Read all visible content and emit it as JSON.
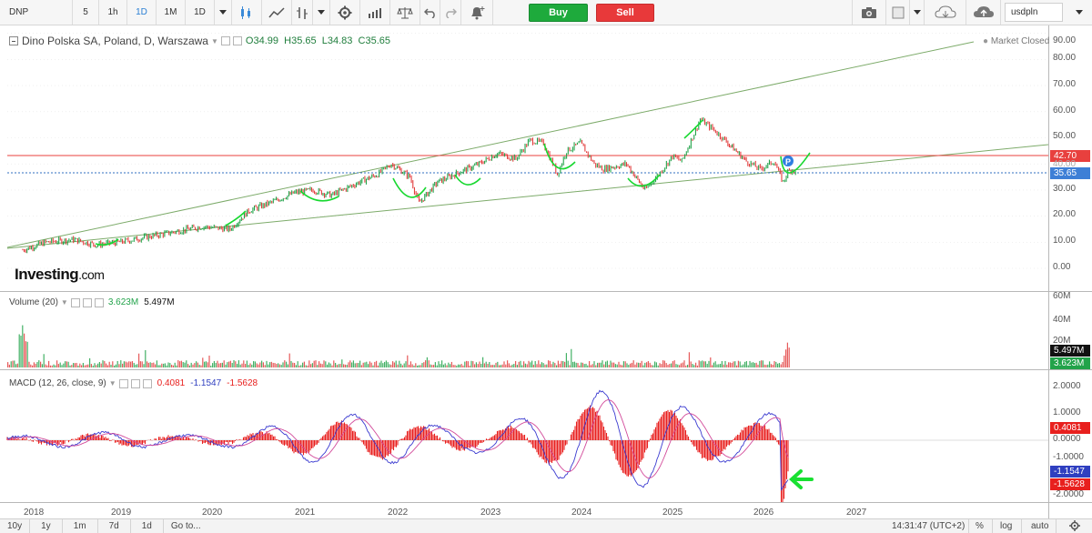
{
  "toolbar": {
    "symbol": "DNP",
    "intervals": [
      "5",
      "1h",
      "1D",
      "1M",
      "1D"
    ],
    "active_interval": "1D",
    "buy_label": "Buy",
    "sell_label": "Sell",
    "currency": "usdpln"
  },
  "main_pane": {
    "title": "Dino Polska SA, Poland, D, Warszawa",
    "ohlc": {
      "o_label": "O",
      "o": "34.99",
      "h_label": "H",
      "h": "35.65",
      "l_label": "L",
      "l": "34.83",
      "c_label": "C",
      "c": "35.65"
    },
    "status": "Market Closed",
    "price_axis": [
      "90.00",
      "80.00",
      "70.00",
      "60.00",
      "50.00",
      "40.00",
      "30.00",
      "20.00",
      "10.00",
      "0.00"
    ],
    "resistance_label": "42.70",
    "last_price_label": "35.65",
    "marker_label": "P",
    "logo": {
      "bold": "Investing",
      "suffix": ".com"
    }
  },
  "volume_pane": {
    "title": "Volume (20)",
    "value1": "3.623M",
    "value2": "5.497M",
    "axis": [
      "60M",
      "40M",
      "20M"
    ],
    "badge_high": "5.497M",
    "badge_low": "3.623M"
  },
  "macd_pane": {
    "title": "MACD (12, 26, close, 9)",
    "hist": "0.4081",
    "macd": "-1.1547",
    "signal": "-1.5628",
    "axis": [
      "2.0000",
      "1.0000",
      "0.0000",
      "-1.0000",
      "-2.0000"
    ],
    "badge_hist": "0.4081",
    "badge_macd": "-1.1547",
    "badge_signal": "-1.5628"
  },
  "date_axis": [
    "2018",
    "2019",
    "2020",
    "2021",
    "2022",
    "2023",
    "2024",
    "2025",
    "2026",
    "2027"
  ],
  "bottom_bar": {
    "ranges": [
      "10y",
      "1y",
      "1m",
      "7d",
      "1d"
    ],
    "goto": "Go to...",
    "time": "14:31:47 (UTC+2)",
    "percent": "%",
    "log": "log",
    "auto": "auto"
  },
  "price_series": {
    "x": [
      2017.95,
      2018.2,
      2018.5,
      2018.75,
      2019.0,
      2019.3,
      2019.6,
      2019.9,
      2020.2,
      2020.4,
      2020.7,
      2020.9,
      2021.1,
      2021.3,
      2021.6,
      2021.8,
      2021.95,
      2022.15,
      2022.25,
      2022.45,
      2022.7,
      2022.9,
      2023.1,
      2023.3,
      2023.45,
      2023.6,
      2023.75,
      2023.85,
      2024.0,
      2024.15,
      2024.25,
      2024.5,
      2024.7,
      2024.85,
      2025.0,
      2025.1,
      2025.2,
      2025.3,
      2025.45,
      2025.6,
      2025.8,
      2025.95,
      2026.1,
      2026.2,
      2026.25,
      2026.3,
      2026.35
    ],
    "y": [
      7,
      10,
      11,
      9,
      10,
      12,
      14,
      16,
      15,
      22,
      26,
      29,
      30,
      28,
      33,
      36,
      40,
      35,
      25,
      33,
      37,
      40,
      44,
      42,
      49,
      48,
      36,
      45,
      48,
      40,
      38,
      40,
      30,
      36,
      43,
      41,
      49,
      57,
      53,
      48,
      41,
      38,
      41,
      33,
      37,
      38,
      35.65
    ],
    "colors": {
      "up": "#22a34a",
      "down": "#e23d3d"
    }
  },
  "accent": {
    "green_line": "#7dab6a",
    "resistance": "#e8403e",
    "last_price": "#2f6fc0",
    "macd_line": "#3a3ad0",
    "signal_line": "#d24a9a",
    "histogram": "#e8201e",
    "arrow": "#19e032"
  }
}
